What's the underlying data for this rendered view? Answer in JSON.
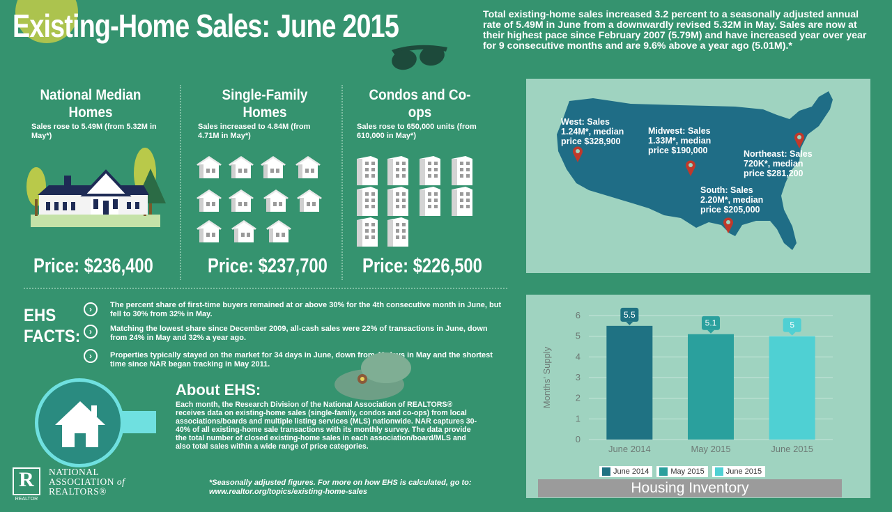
{
  "header": {
    "title": "Existing-Home Sales: June 2015",
    "intro": "Total existing-home sales increased 3.2 percent to a seasonally adjusted annual rate of 5.49M in June from a downwardly revised 5.32M in May.  Sales are now at their highest pace since February 2007 (5.79M) and have increased year over year for 9 consecutive months and are 9.6% above a year ago (5.01M).*"
  },
  "columns": [
    {
      "title": "National Median Homes",
      "sub": "Sales rose to 5.49M (from 5.32M in May*)",
      "price": "Price: $236,400"
    },
    {
      "title": "Single-Family Homes",
      "sub": "Sales increased to 4.84M (from 4.71M in May*)",
      "price": "Price: $237,700"
    },
    {
      "title": "Condos and Co-ops",
      "sub": "Sales rose to 650,000 units (from 610,000 in May*)",
      "price": "Price: $226,500"
    }
  ],
  "map": {
    "regions": [
      {
        "label": "West: Sales 1.24M*, median price $328,900"
      },
      {
        "label": "Midwest: Sales 1.33M*, median price $190,000"
      },
      {
        "label": "Northeast: Sales 720K*, median price $281,200"
      },
      {
        "label": "South: Sales 2.20M*, median price $205,000"
      }
    ]
  },
  "facts": {
    "heading": "EHS FACTS:",
    "items": [
      "The percent share of first-time buyers remained at or above 30% for the 4th consecutive month in June, but fell to 30% from 32% in May.",
      "Matching the lowest share since December 2009, all-cash sales were 22% of transactions in June, down from 24% in May and 32% a year ago.",
      "Properties typically stayed on the market for 34 days in June, down from 40 days in May and the shortest time since NAR began tracking in May 2011."
    ]
  },
  "about": {
    "title": "About EHS:",
    "text": "Each month, the Research Division of the National Association of REALTORS® receives data on existing-home sales (single-family, condos and co-ops) from local associations/boards and multiple listing services (MLS) nationwide. NAR captures 30-40% of all existing-home sale transactions with its monthly survey. The data provide the total number of closed existing-home sales in each association/board/MLS and also total sales within a wide range of price categories."
  },
  "footnote": {
    "line1": "*Seasonally adjusted figures. For more on how EHS is calculated, go to:",
    "line2": "www.realtor.org/topics/existing-home-sales"
  },
  "logo": {
    "line1": "NATIONAL",
    "line2": "ASSOCIATION",
    "line2_suffix": "of",
    "line3": "REALTORS®",
    "mark": "R",
    "mark_sub": "REALTOR"
  },
  "chart_data": {
    "type": "bar",
    "title": "Housing Inventory",
    "ylabel": "Months' Supply",
    "xlabel": "",
    "categories": [
      "June 2014",
      "May 2015",
      "June 2015"
    ],
    "values": [
      5.5,
      5.1,
      5
    ],
    "value_labels": [
      "5.5",
      "5.1",
      "5"
    ],
    "colors": [
      "#1f7283",
      "#2aa09d",
      "#4fd0d3"
    ],
    "ylim": [
      0,
      6
    ],
    "yticks": [
      "0",
      "1",
      "2",
      "3",
      "4",
      "5",
      "6"
    ],
    "legend": [
      "June 2014",
      "May 2015",
      "June 2015"
    ],
    "legend_position": "bottom"
  }
}
